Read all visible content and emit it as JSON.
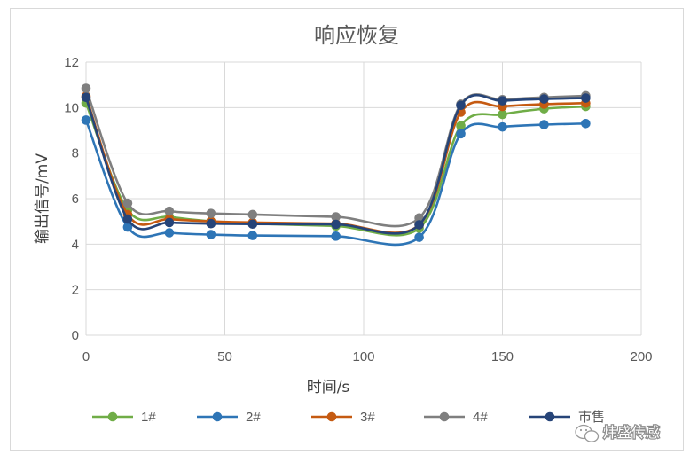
{
  "chart_data": {
    "type": "line",
    "title": "响应恢复",
    "xlabel": "时间/s",
    "ylabel": "输出信号/mV",
    "xlim": [
      0,
      200
    ],
    "ylim": [
      0,
      12
    ],
    "xticks": [
      0,
      50,
      100,
      150,
      200
    ],
    "yticks": [
      0,
      2,
      4,
      6,
      8,
      10,
      12
    ],
    "grid": true,
    "smooth": true,
    "legend_position": "bottom",
    "x": [
      0,
      15,
      30,
      45,
      60,
      90,
      120,
      135,
      150,
      165,
      180
    ],
    "series": [
      {
        "name": "1#",
        "color": "#70AD47",
        "values": [
          10.2,
          5.5,
          5.2,
          5.0,
          4.9,
          4.8,
          4.7,
          9.2,
          9.7,
          9.95,
          10.05
        ]
      },
      {
        "name": "2#",
        "color": "#2E75B6",
        "values": [
          9.45,
          4.75,
          4.5,
          4.42,
          4.38,
          4.35,
          4.3,
          8.85,
          9.15,
          9.25,
          9.3
        ]
      },
      {
        "name": "3#",
        "color": "#C55A11",
        "values": [
          10.5,
          5.3,
          5.1,
          5.0,
          4.95,
          4.9,
          4.85,
          9.8,
          10.05,
          10.15,
          10.2
        ]
      },
      {
        "name": "4#",
        "color": "#7F7F7F",
        "values": [
          10.85,
          5.8,
          5.45,
          5.35,
          5.3,
          5.2,
          5.15,
          10.15,
          10.35,
          10.45,
          10.52
        ]
      },
      {
        "name": "市售",
        "color": "#264478",
        "values": [
          10.45,
          5.1,
          4.95,
          4.9,
          4.88,
          4.87,
          4.85,
          10.1,
          10.3,
          10.38,
          10.42
        ]
      }
    ]
  },
  "watermark": {
    "text": "炜盛传感",
    "icon": "wechat-icon"
  }
}
